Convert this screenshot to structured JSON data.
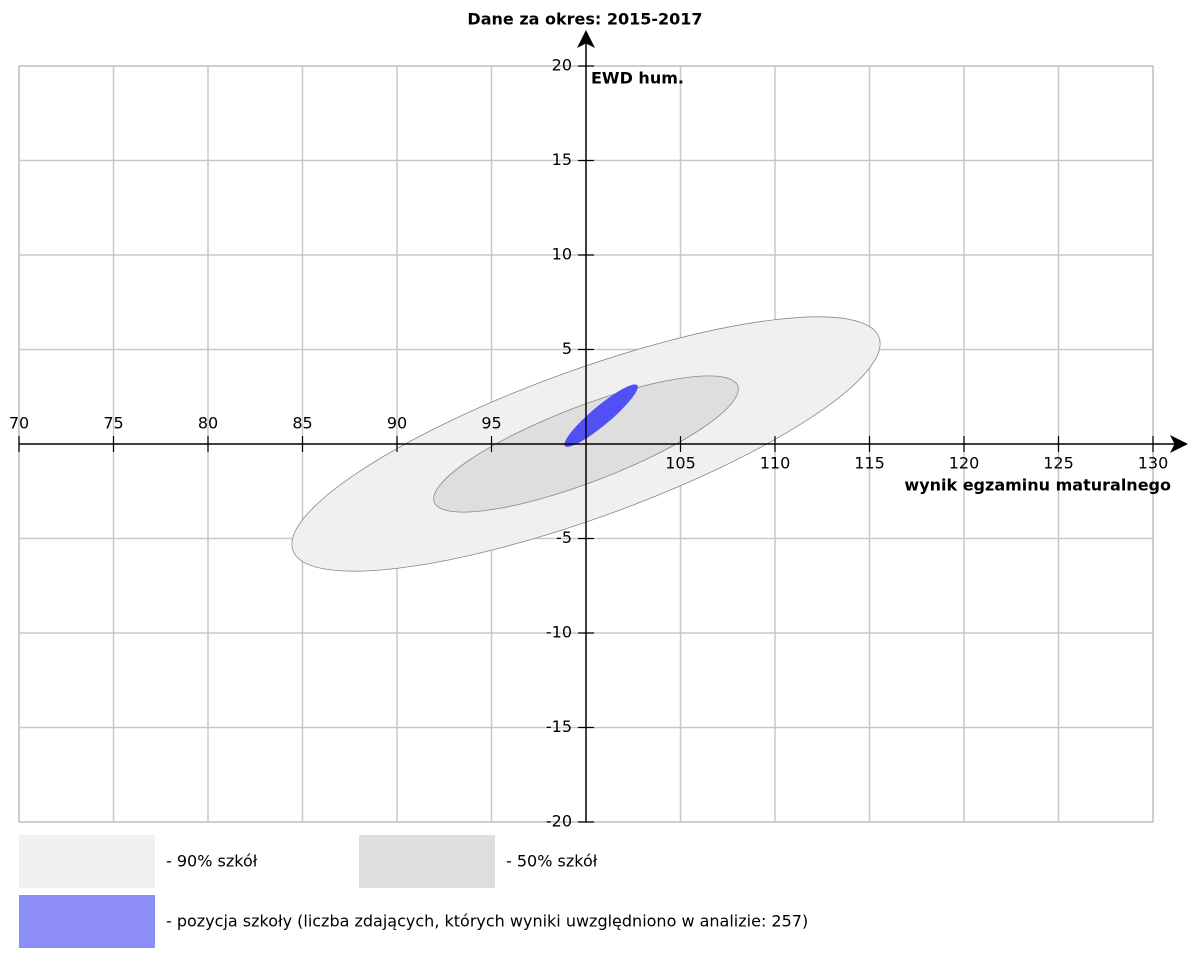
{
  "chart_data": {
    "type": "ellipse",
    "title": "Dane za okres: 2015-2017",
    "xlabel": "wynik egzaminu maturalnego",
    "ylabel": "EWD hum.",
    "xlim": [
      70,
      130
    ],
    "ylim": [
      -20,
      20
    ],
    "xticks": [
      70,
      75,
      80,
      85,
      90,
      95,
      105,
      110,
      115,
      120,
      125,
      130
    ],
    "yticks": [
      20,
      15,
      10,
      5,
      -5,
      -10,
      -15,
      -20
    ],
    "grid": true,
    "series": [
      {
        "name": "- 90% szkół",
        "color": "#f0f0f0",
        "x": 100,
        "y": 0,
        "semi_major": 16.5,
        "semi_minor": 3.9,
        "angle": 20
      },
      {
        "name": "- 50% szkół",
        "color": "#dedede",
        "x": 100,
        "y": 0,
        "semi_major": 8.6,
        "semi_minor": 2,
        "angle": 21
      },
      {
        "name": "- pozycja szkoły (liczba zdających, których wyniki uwzględniono w analizie: 257)",
        "color": "#5050f5",
        "x": 100.8,
        "y": 1.5,
        "semi_major": 2.5,
        "semi_minor": 0.5,
        "angle": 40
      }
    ]
  }
}
